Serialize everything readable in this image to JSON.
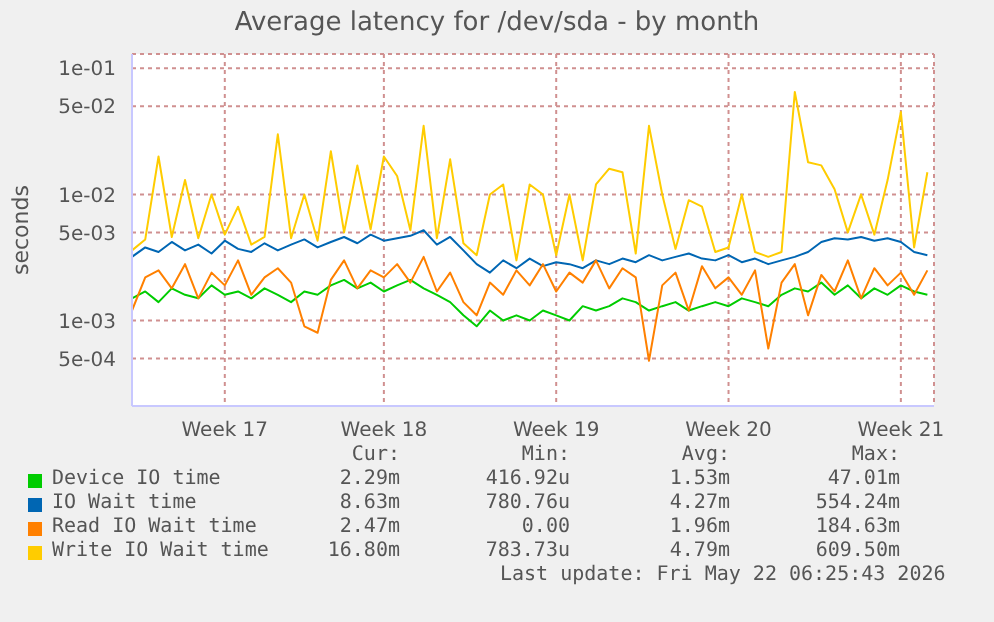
{
  "chart_data": {
    "type": "line",
    "title": "Average latency for /dev/sda - by month",
    "ylabel": "seconds",
    "categories": [
      null,
      null,
      null,
      null,
      null,
      null,
      null,
      "Week 17",
      null,
      null,
      null,
      null,
      null,
      null,
      null,
      null,
      null,
      null,
      null,
      "Week 18",
      null,
      null,
      null,
      null,
      null,
      null,
      null,
      null,
      null,
      null,
      null,
      null,
      "Week 19",
      null,
      null,
      null,
      null,
      null,
      null,
      null,
      null,
      null,
      null,
      null,
      null,
      "Week 20",
      null,
      null,
      null,
      null,
      null,
      null,
      null,
      null,
      null,
      null,
      null,
      null,
      "Week 21",
      null,
      null
    ],
    "ylim": [
      0.00021,
      0.13
    ],
    "log": true,
    "yticks": [
      {
        "value": 0.1,
        "label": "1e-01"
      },
      {
        "value": 0.05,
        "label": "5e-02"
      },
      {
        "value": 0.01,
        "label": "1e-02"
      },
      {
        "value": 0.005,
        "label": "5e-03"
      },
      {
        "value": 0.001,
        "label": "1e-03"
      },
      {
        "value": 0.0005,
        "label": "5e-04"
      }
    ],
    "grid": true,
    "legend": "bottom",
    "series": [
      {
        "name": "Device IO time",
        "color": "#00cc00",
        "values": [
          0.0015,
          0.0017,
          0.0014,
          0.0018,
          0.0016,
          0.0015,
          0.0019,
          0.0016,
          0.0017,
          0.0015,
          0.0018,
          0.0016,
          0.0014,
          0.0017,
          0.0016,
          0.0019,
          0.0021,
          0.0018,
          0.002,
          0.0017,
          0.0019,
          0.0021,
          0.0018,
          0.0016,
          0.0014,
          0.0011,
          0.0009,
          0.0012,
          0.001,
          0.0011,
          0.001,
          0.0012,
          0.0011,
          0.001,
          0.0013,
          0.0012,
          0.0013,
          0.0015,
          0.0014,
          0.0012,
          0.0013,
          0.0014,
          0.0012,
          0.0013,
          0.0014,
          0.0013,
          0.0015,
          0.0014,
          0.0013,
          0.0016,
          0.0018,
          0.0017,
          0.002,
          0.0016,
          0.0019,
          0.0015,
          0.0018,
          0.0016,
          0.0019,
          0.0017,
          0.0016
        ]
      },
      {
        "name": "IO Wait time",
        "color": "#0066b3",
        "values": [
          0.0032,
          0.0038,
          0.0035,
          0.0042,
          0.0036,
          0.004,
          0.0034,
          0.0043,
          0.0037,
          0.0035,
          0.0041,
          0.0036,
          0.004,
          0.0044,
          0.0038,
          0.0042,
          0.0046,
          0.0041,
          0.0048,
          0.0043,
          0.0045,
          0.0047,
          0.0052,
          0.004,
          0.0046,
          0.0036,
          0.0028,
          0.0024,
          0.003,
          0.0026,
          0.0031,
          0.0027,
          0.0029,
          0.0028,
          0.0026,
          0.003,
          0.0028,
          0.0031,
          0.0029,
          0.0033,
          0.003,
          0.0032,
          0.0034,
          0.0031,
          0.003,
          0.0033,
          0.0029,
          0.0031,
          0.0028,
          0.003,
          0.0032,
          0.0035,
          0.0042,
          0.0045,
          0.0044,
          0.0046,
          0.0043,
          0.0045,
          0.0042,
          0.0035,
          0.0033
        ]
      },
      {
        "name": "Read IO Wait time",
        "color": "#ff8000",
        "values": [
          0.0012,
          0.0022,
          0.0025,
          0.0018,
          0.0028,
          0.0015,
          0.0024,
          0.0019,
          0.003,
          0.0016,
          0.0022,
          0.0026,
          0.002,
          0.0009,
          0.0008,
          0.0021,
          0.003,
          0.0018,
          0.0025,
          0.0022,
          0.0028,
          0.002,
          0.0032,
          0.0017,
          0.0024,
          0.0014,
          0.0011,
          0.002,
          0.0016,
          0.0025,
          0.0019,
          0.0028,
          0.0017,
          0.0024,
          0.002,
          0.003,
          0.0018,
          0.0026,
          0.0022,
          0.00048,
          0.0019,
          0.0024,
          0.0012,
          0.0027,
          0.0018,
          0.0022,
          0.0016,
          0.0025,
          0.0006,
          0.002,
          0.0028,
          0.0011,
          0.0023,
          0.0017,
          0.003,
          0.0015,
          0.0026,
          0.0019,
          0.0024,
          0.0016,
          0.0025
        ]
      },
      {
        "name": "Write IO Wait time",
        "color": "#ffcc00",
        "values": [
          0.0036,
          0.0044,
          0.02,
          0.0046,
          0.013,
          0.0045,
          0.01,
          0.0048,
          0.008,
          0.004,
          0.0046,
          0.03,
          0.0045,
          0.01,
          0.0043,
          0.022,
          0.005,
          0.017,
          0.0053,
          0.02,
          0.014,
          0.0052,
          0.035,
          0.0045,
          0.019,
          0.0041,
          0.0033,
          0.01,
          0.012,
          0.003,
          0.012,
          0.01,
          0.0033,
          0.01,
          0.003,
          0.012,
          0.016,
          0.015,
          0.0034,
          0.035,
          0.01,
          0.0037,
          0.009,
          0.008,
          0.0035,
          0.0038,
          0.01,
          0.0035,
          0.0032,
          0.0035,
          0.065,
          0.018,
          0.017,
          0.011,
          0.005,
          0.01,
          0.0048,
          0.013,
          0.045,
          0.0038,
          0.015
        ]
      }
    ],
    "annotations": [
      "Cur:",
      "Min:",
      "Avg:",
      "Max:",
      "2.29m",
      "416.92u",
      "1.53m",
      "47.01m",
      "8.63m",
      "780.76u",
      "4.27m",
      "554.24m",
      "2.47m",
      "0.00",
      "1.96m",
      "184.63m",
      "16.80m",
      "783.73u",
      "4.79m",
      "609.50m",
      "Last update: Fri May 22 06:25:43 2026"
    ]
  }
}
